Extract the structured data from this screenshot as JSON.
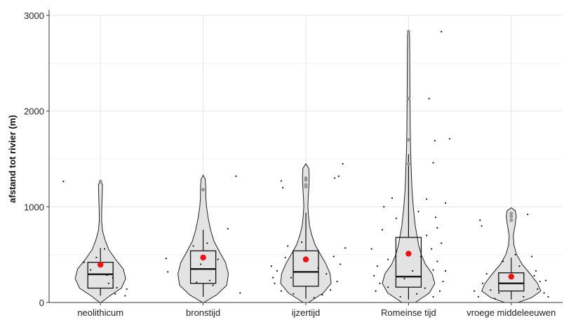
{
  "chart_data": {
    "type": "violin",
    "title": "",
    "xlabel": "",
    "ylabel": "afstand tot rivier (m)",
    "ylim": [
      0,
      3000
    ],
    "yticks": [
      0,
      1000,
      2000,
      3000
    ],
    "grid": true,
    "categories": [
      "neolithicum",
      "bronstijd",
      "ijzertijd",
      "Romeinse tijd",
      "vroege middeleeuwen"
    ],
    "colors": {
      "violin_fill": "#e3e3e3",
      "mean": "#ee1111",
      "points": "#111111",
      "outlier": "#999999"
    },
    "groups": [
      {
        "name": "neolithicum",
        "box": {
          "min": 70,
          "q1": 150,
          "median": 295,
          "q3": 420,
          "max": 570
        },
        "mean": 395,
        "max": 1270,
        "density": [
          [
            0,
            0.02
          ],
          [
            70,
            0.28
          ],
          [
            150,
            0.62
          ],
          [
            250,
            0.75
          ],
          [
            350,
            0.68
          ],
          [
            450,
            0.45
          ],
          [
            550,
            0.25
          ],
          [
            650,
            0.14
          ],
          [
            750,
            0.06
          ],
          [
            850,
            0.035
          ],
          [
            950,
            0.035
          ],
          [
            1050,
            0.045
          ],
          [
            1150,
            0.055
          ],
          [
            1230,
            0.06
          ],
          [
            1270,
            0
          ]
        ],
        "points": [
          [
            -0.45,
            1265
          ],
          [
            -0.2,
            420
          ],
          [
            -0.12,
            340
          ],
          [
            0.08,
            285
          ],
          [
            0.05,
            560
          ],
          [
            0.15,
            260
          ],
          [
            0.2,
            155
          ],
          [
            0.3,
            70
          ],
          [
            0.32,
            140
          ],
          [
            0.18,
            90
          ],
          [
            0.1,
            200
          ],
          [
            -0.05,
            470
          ]
        ],
        "outliers": [
          1265
        ]
      },
      {
        "name": "bronstijd",
        "box": {
          "min": 60,
          "q1": 200,
          "median": 350,
          "q3": 540,
          "max": 760
        },
        "mean": 470,
        "max": 1330,
        "density": [
          [
            0,
            0.02
          ],
          [
            80,
            0.4
          ],
          [
            180,
            0.7
          ],
          [
            300,
            0.75
          ],
          [
            420,
            0.66
          ],
          [
            520,
            0.5
          ],
          [
            640,
            0.32
          ],
          [
            760,
            0.22
          ],
          [
            880,
            0.15
          ],
          [
            1000,
            0.1
          ],
          [
            1100,
            0.08
          ],
          [
            1200,
            0.08
          ],
          [
            1290,
            0.06
          ],
          [
            1330,
            0
          ]
        ],
        "points": [
          [
            -0.45,
            460
          ],
          [
            -0.43,
            320
          ],
          [
            0.4,
            1320
          ],
          [
            0.3,
            770
          ],
          [
            0.45,
            100
          ],
          [
            0.08,
            230
          ],
          [
            0.12,
            180
          ],
          [
            -0.12,
            590
          ],
          [
            -0.08,
            210
          ],
          [
            0.18,
            450
          ],
          [
            0.05,
            620
          ],
          [
            -0.03,
            400
          ]
        ],
        "outliers": [
          1180
        ]
      },
      {
        "name": "ijzertijd",
        "box": {
          "min": 40,
          "q1": 170,
          "median": 320,
          "q3": 540,
          "max": 940
        },
        "mean": 450,
        "max": 1450,
        "density": [
          [
            0,
            0.08
          ],
          [
            100,
            0.52
          ],
          [
            200,
            0.75
          ],
          [
            300,
            0.72
          ],
          [
            400,
            0.6
          ],
          [
            500,
            0.44
          ],
          [
            600,
            0.28
          ],
          [
            700,
            0.18
          ],
          [
            800,
            0.11
          ],
          [
            900,
            0.08
          ],
          [
            1000,
            0.06
          ],
          [
            1100,
            0.07
          ],
          [
            1200,
            0.09
          ],
          [
            1300,
            0.1
          ],
          [
            1400,
            0.09
          ],
          [
            1450,
            0
          ]
        ],
        "points": [
          [
            -0.42,
            380
          ],
          [
            -0.38,
            200
          ],
          [
            -0.35,
            330
          ],
          [
            -0.3,
            120
          ],
          [
            -0.25,
            470
          ],
          [
            -0.22,
            590
          ],
          [
            -0.3,
            1270
          ],
          [
            -0.28,
            1200
          ],
          [
            0.35,
            1300
          ],
          [
            0.4,
            1320
          ],
          [
            0.42,
            400
          ],
          [
            0.38,
            220
          ],
          [
            0.45,
            1450
          ],
          [
            0.48,
            570
          ],
          [
            0.3,
            130
          ],
          [
            0.34,
            480
          ],
          [
            0.25,
            300
          ],
          [
            -0.15,
            90
          ],
          [
            0.2,
            80
          ],
          [
            -0.4,
            260
          ],
          [
            0.1,
            50
          ],
          [
            -0.05,
            630
          ],
          [
            0.15,
            360
          ],
          [
            -0.18,
            260
          ]
        ],
        "outliers": [
          1230,
          1280,
          1300,
          1210
        ]
      },
      {
        "name": "Romeinse tijd",
        "box": {
          "min": 30,
          "q1": 160,
          "median": 270,
          "q3": 680,
          "max": 1550
        },
        "mean": 510,
        "max": 2840,
        "density": [
          [
            0,
            0.2
          ],
          [
            100,
            0.62
          ],
          [
            200,
            0.78
          ],
          [
            300,
            0.7
          ],
          [
            400,
            0.5
          ],
          [
            500,
            0.38
          ],
          [
            600,
            0.3
          ],
          [
            700,
            0.25
          ],
          [
            800,
            0.2
          ],
          [
            1000,
            0.14
          ],
          [
            1200,
            0.1
          ],
          [
            1400,
            0.08
          ],
          [
            1600,
            0.06
          ],
          [
            1800,
            0.05
          ],
          [
            2000,
            0.045
          ],
          [
            2300,
            0.04
          ],
          [
            2600,
            0.035
          ],
          [
            2800,
            0.03
          ],
          [
            2840,
            0
          ]
        ],
        "points": [
          [
            -0.45,
            560
          ],
          [
            -0.42,
            280
          ],
          [
            -0.38,
            380
          ],
          [
            -0.35,
            200
          ],
          [
            -0.4,
            120
          ],
          [
            -0.3,
            1000
          ],
          [
            -0.32,
            760
          ],
          [
            -0.25,
            450
          ],
          [
            -0.2,
            1090
          ],
          [
            -0.15,
            880
          ],
          [
            0.12,
            950
          ],
          [
            0.25,
            2130
          ],
          [
            0.3,
            1460
          ],
          [
            0.32,
            1690
          ],
          [
            0.33,
            890
          ],
          [
            0.4,
            2830
          ],
          [
            0.45,
            1040
          ],
          [
            0.5,
            1710
          ],
          [
            0.45,
            330
          ],
          [
            0.42,
            220
          ],
          [
            0.38,
            120
          ],
          [
            0.35,
            430
          ],
          [
            0.28,
            560
          ],
          [
            0.3,
            60
          ],
          [
            0.2,
            150
          ],
          [
            0.15,
            480
          ],
          [
            0.22,
            700
          ],
          [
            -0.1,
            60
          ],
          [
            0.05,
            330
          ],
          [
            -0.05,
            250
          ],
          [
            0.1,
            90
          ],
          [
            -0.25,
            160
          ],
          [
            0.3,
            340
          ],
          [
            0.4,
            620
          ],
          [
            0.35,
            780
          ],
          [
            0.22,
            1080
          ]
        ],
        "outliers": [
          1450,
          1700,
          2130,
          2830
        ]
      },
      {
        "name": "vroege middeleeuwen",
        "box": {
          "min": 30,
          "q1": 120,
          "median": 200,
          "q3": 310,
          "max": 470
        },
        "mean": 270,
        "max": 990,
        "density": [
          [
            0,
            0.2
          ],
          [
            50,
            0.6
          ],
          [
            120,
            0.88
          ],
          [
            200,
            0.78
          ],
          [
            300,
            0.56
          ],
          [
            400,
            0.32
          ],
          [
            500,
            0.16
          ],
          [
            600,
            0.08
          ],
          [
            700,
            0.06
          ],
          [
            800,
            0.11
          ],
          [
            900,
            0.15
          ],
          [
            960,
            0.12
          ],
          [
            990,
            0
          ]
        ],
        "points": [
          [
            -0.45,
            120
          ],
          [
            -0.4,
            60
          ],
          [
            -0.35,
            200
          ],
          [
            -0.38,
            860
          ],
          [
            -0.36,
            800
          ],
          [
            -0.3,
            300
          ],
          [
            -0.25,
            130
          ],
          [
            0.2,
            920
          ],
          [
            0.25,
            480
          ],
          [
            0.3,
            330
          ],
          [
            0.35,
            220
          ],
          [
            0.4,
            100
          ],
          [
            0.45,
            60
          ],
          [
            0.32,
            140
          ],
          [
            0.28,
            280
          ],
          [
            0.15,
            60
          ],
          [
            -0.2,
            40
          ],
          [
            -0.1,
            430
          ],
          [
            0.1,
            380
          ],
          [
            -0.15,
            100
          ],
          [
            0.05,
            500
          ],
          [
            0.42,
            230
          ]
        ],
        "outliers": [
          860,
          900,
          930
        ]
      }
    ]
  }
}
